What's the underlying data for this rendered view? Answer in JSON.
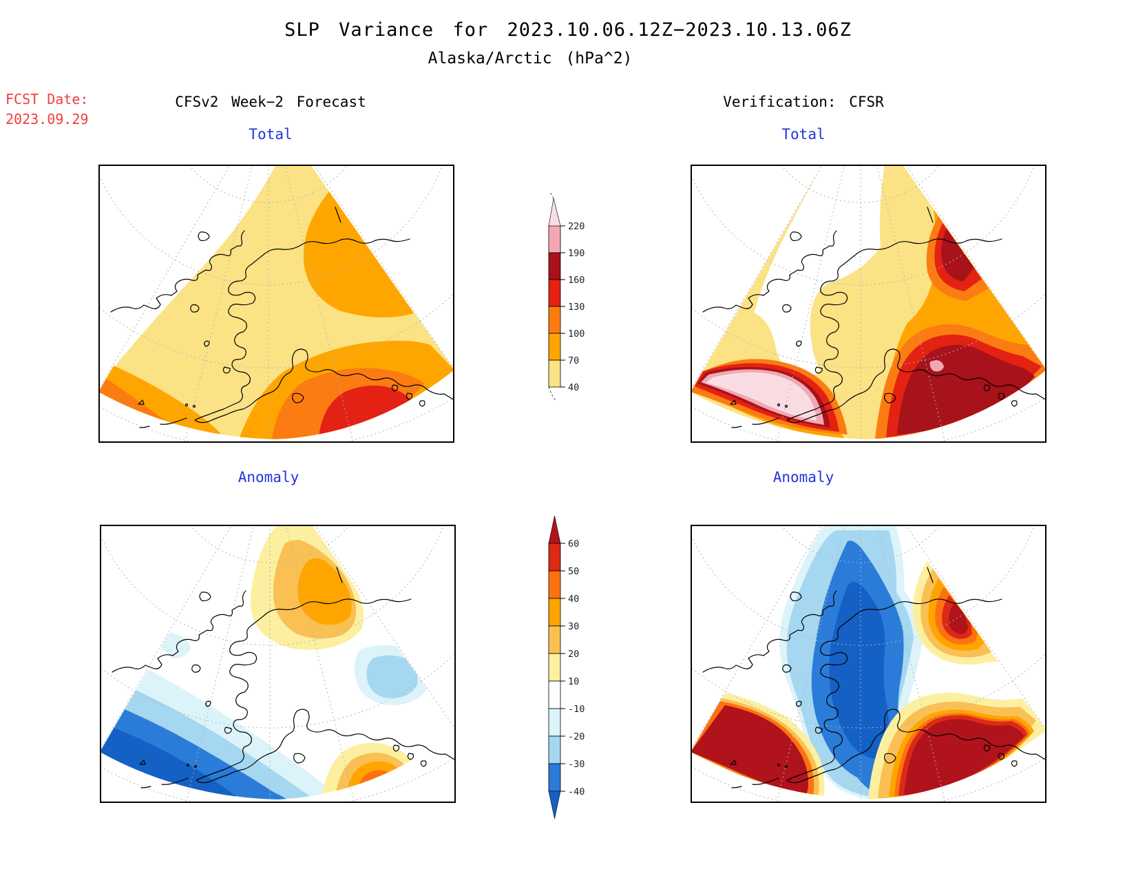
{
  "title": {
    "line1": "SLP Variance for 2023.10.06.12Z−2023.10.13.06Z",
    "line2": "Alaska/Arctic (hPa^2)"
  },
  "fcst": {
    "line1": "FCST Date:",
    "line2": "2023.09.29"
  },
  "headers": {
    "left": "CFSv2 Week−2 Forecast",
    "right": "Verification: CFSR"
  },
  "panels": {
    "tl": {
      "label": "Total"
    },
    "tr": {
      "label": "Total"
    },
    "bl": {
      "label": "Anomaly"
    },
    "br": {
      "label": "Anomaly"
    }
  },
  "palette": {
    "t40": "#FBE285",
    "t70": "#FFA500",
    "t100": "#FB7C12",
    "t130": "#E32213",
    "t160": "#A8121A",
    "t190": "#F2A8B4",
    "t220": "#FADDE3",
    "a10": "#FCF0A0",
    "a20": "#FAC054",
    "a30": "#FFA500",
    "a40": "#FC7210",
    "a50": "#DB2A16",
    "a60": "#B0131B",
    "white": "#FFFFFF",
    "am10": "#DDF3FA",
    "am20": "#A5D7F0",
    "am30": "#2B7CD8",
    "am40": "#1560C4",
    "grid": "#A9B4C4",
    "coast": "#000000",
    "label_blue": "#2533DC",
    "fcst_red": "#F23D3D"
  },
  "colorbars": {
    "total": {
      "tick_labels_top_to_bottom": [
        "220",
        "190",
        "160",
        "130",
        "100",
        "70",
        "40"
      ],
      "segment_keys_top_to_bottom": [
        "t190",
        "t160",
        "t130",
        "t100",
        "t70",
        "t40"
      ],
      "over_key": "t220"
    },
    "anomaly": {
      "tick_labels_top_to_bottom": [
        "60",
        "50",
        "40",
        "30",
        "20",
        "10",
        "-10",
        "-20",
        "-30",
        "-40"
      ],
      "segment_keys_top_to_bottom": [
        "a50",
        "a40",
        "a30",
        "a20",
        "a10",
        "white",
        "am10",
        "am20",
        "am30"
      ],
      "over_key": "a60",
      "under_key": "am40"
    }
  },
  "chart_data": {
    "type": "heatmap",
    "subtype": "filled-contour-polar-maps",
    "title": "SLP Variance for 2023.10.06.12Z−2023.10.13.06Z",
    "region": "Alaska/Arctic",
    "units": "hPa^2",
    "forecast_date": "2023.09.29",
    "valid_period": "2023.10.06.12Z to 2023.10.13.06Z",
    "total_levels": [
      40,
      70,
      100,
      130,
      160,
      190,
      220
    ],
    "anomaly_levels": [
      -40,
      -30,
      -20,
      -10,
      10,
      20,
      30,
      40,
      50,
      60
    ],
    "panels": [
      {
        "column": "CFSv2 Week−2 Forecast",
        "row": "Total",
        "summary": "40–70 hPa^2 over most of Alaska; 70–100 band over northeast interior and far southwest corner; maximum 130–160 south of the Gulf of Alaska coast; below 40 over the Arctic northwest"
      },
      {
        "column": "Verification: CFSR",
        "row": "Total",
        "summary": "below 40 over the interior and Arctic; greater than 220 maximum southwest of the Alaska Peninsula (Bering Sea); 160–190 maxima along the Gulf of Alaska coast reaching the southeast corner; 70–130 band along the eastern flank"
      },
      {
        "column": "CFSv2 Week−2 Forecast",
        "row": "Anomaly",
        "summary": "+20 to +40 over the Beaufort/north coast; −30 to −40 band over the Bering Sea and southwest; −10 to −30 patch over the eastern Gulf; small +50 to +60 maximum at the Gulf coast near Kodiak"
      },
      {
        "column": "Verification: CFSR",
        "row": "Anomaly",
        "summary": "−30 to below −40 over central and western Alaska; greater than +60 maxima over the southwest Bering Sea and along the Gulf of Alaska coast; +60 spot on the northeast edge"
      }
    ],
    "legend_position": "two vertical colorbars between map columns",
    "grid": "dashed gray lat/lon graticule on all panels"
  }
}
